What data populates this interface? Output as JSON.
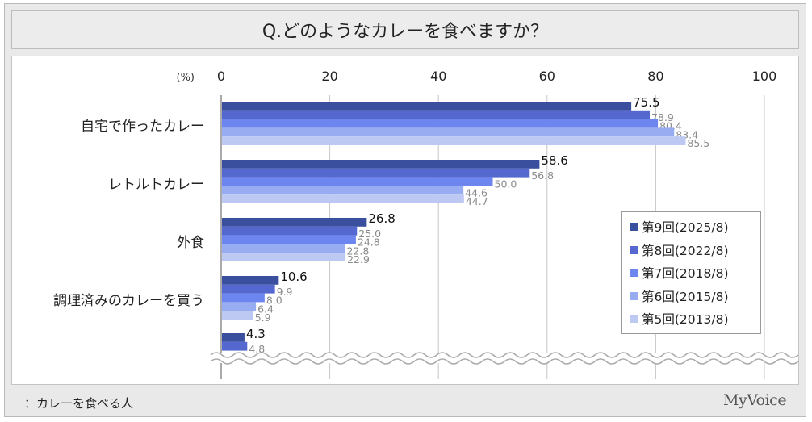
{
  "title": "Q.どのようなカレーを食べますか？",
  "unit_label": "(%)",
  "footnote": "：カレーを食べる人",
  "brand": "MyVoice",
  "colors": {
    "series": [
      "#3a4f9e",
      "#5468cf",
      "#6d85ee",
      "#98acf1",
      "#bec9f3"
    ],
    "value_label_first": "#111111",
    "value_label_rest": "#8a8a8a"
  },
  "chart_data": {
    "type": "bar",
    "orientation": "horizontal",
    "title": "Q.どのようなカレーを食べますか？",
    "xlim": [
      0,
      100
    ],
    "ticks": [
      "0",
      "20",
      "40",
      "60",
      "80",
      "100"
    ],
    "grid": true,
    "legend_position": "bottom-right",
    "categories": [
      "自宅で作ったカレー",
      "レトルトカレー",
      "外食",
      "調理済みのカレーを買う",
      ""
    ],
    "axis_break": true,
    "series": [
      {
        "name": "第9回(2025/8)",
        "values": [
          75.5,
          58.6,
          26.8,
          10.6,
          4.3
        ]
      },
      {
        "name": "第8回(2022/8)",
        "values": [
          78.9,
          56.8,
          25.0,
          9.9,
          4.8
        ]
      },
      {
        "name": "第7回(2018/8)",
        "values": [
          80.4,
          50.0,
          24.8,
          8.0,
          null
        ]
      },
      {
        "name": "第6回(2015/8)",
        "values": [
          83.4,
          44.6,
          22.8,
          6.4,
          null
        ]
      },
      {
        "name": "第5回(2013/8)",
        "values": [
          85.5,
          44.7,
          22.9,
          5.9,
          null
        ]
      }
    ]
  }
}
